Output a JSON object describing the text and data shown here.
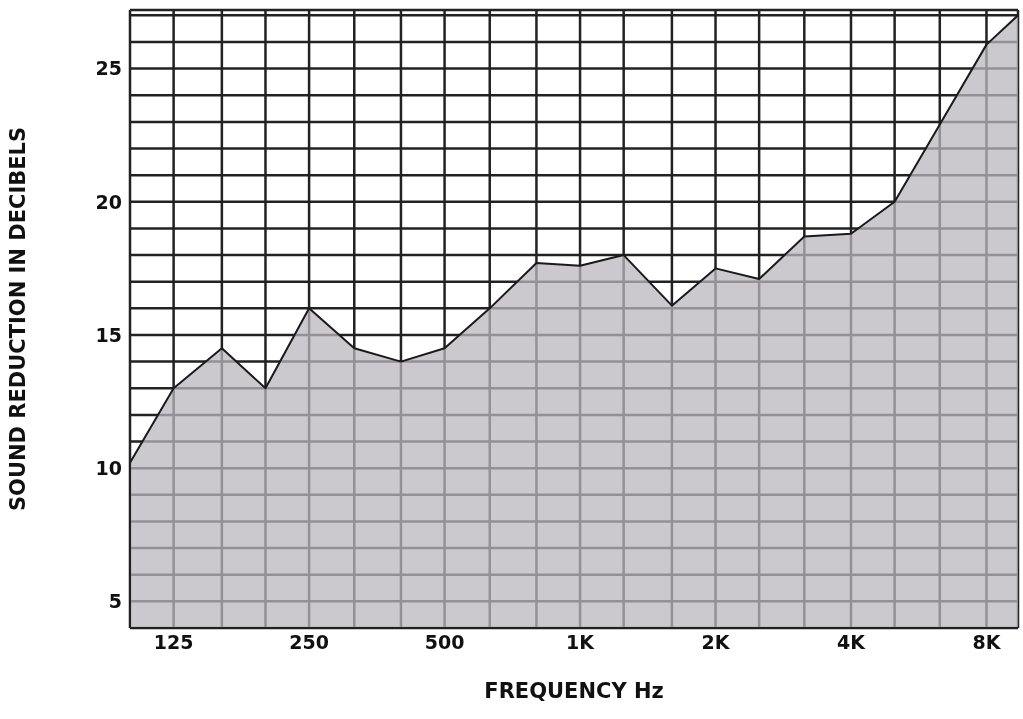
{
  "chart_data": {
    "type": "area",
    "xlabel": "FREQUENCY Hz",
    "ylabel": "SOUND REDUCTION IN DECIBELS",
    "log": "x",
    "grid": true,
    "x": [
      100,
      125,
      160,
      200,
      250,
      315,
      400,
      500,
      630,
      800,
      1000,
      1250,
      1600,
      2000,
      2500,
      3150,
      4000,
      5000,
      6300,
      8000,
      9400
    ],
    "series": [
      {
        "color": "#b9b5bd",
        "values": [
          10.2,
          13.0,
          14.5,
          13.0,
          16.0,
          14.5,
          14.0,
          14.5,
          16.0,
          17.7,
          17.6,
          18.0,
          16.1,
          17.5,
          17.1,
          18.7,
          18.8,
          20.0,
          22.9,
          25.9,
          27.0
        ]
      }
    ],
    "xlim": [
      100,
      9400
    ],
    "xticks": [
      {
        "value": 100,
        "label": null
      },
      125,
      {
        "value": 160,
        "label": null
      },
      {
        "value": 200,
        "label": null
      },
      250,
      {
        "value": 315,
        "label": null
      },
      {
        "value": 400,
        "label": null
      },
      500,
      {
        "value": 630,
        "label": null
      },
      {
        "value": 800,
        "label": null
      },
      {
        "value": 1000,
        "label": "1K"
      },
      {
        "value": 1250,
        "label": null
      },
      {
        "value": 1600,
        "label": null
      },
      {
        "value": 2000,
        "label": "2K"
      },
      {
        "value": 2500,
        "label": null
      },
      {
        "value": 3150,
        "label": null
      },
      {
        "value": 4000,
        "label": "4K"
      },
      {
        "value": 5000,
        "label": null
      },
      {
        "value": 6300,
        "label": null
      },
      {
        "value": 8000,
        "label": "8K"
      }
    ],
    "ylim": [
      4,
      27.2
    ],
    "yticks": [
      5,
      {
        "value": 6,
        "label": null
      },
      {
        "value": 7,
        "label": null
      },
      {
        "value": 8,
        "label": null
      },
      {
        "value": 9,
        "label": null
      },
      10,
      {
        "value": 11,
        "label": null
      },
      {
        "value": 12,
        "label": null
      },
      {
        "value": 13,
        "label": null
      },
      {
        "value": 14,
        "label": null
      },
      15,
      {
        "value": 16,
        "label": null
      },
      {
        "value": 17,
        "label": null
      },
      {
        "value": 18,
        "label": null
      },
      {
        "value": 19,
        "label": null
      },
      20,
      {
        "value": 21,
        "label": null
      },
      {
        "value": 22,
        "label": null
      },
      {
        "value": 23,
        "label": null
      },
      {
        "value": 24,
        "label": null
      },
      25,
      {
        "value": 26,
        "label": null
      },
      {
        "value": 27,
        "label": null
      }
    ]
  }
}
